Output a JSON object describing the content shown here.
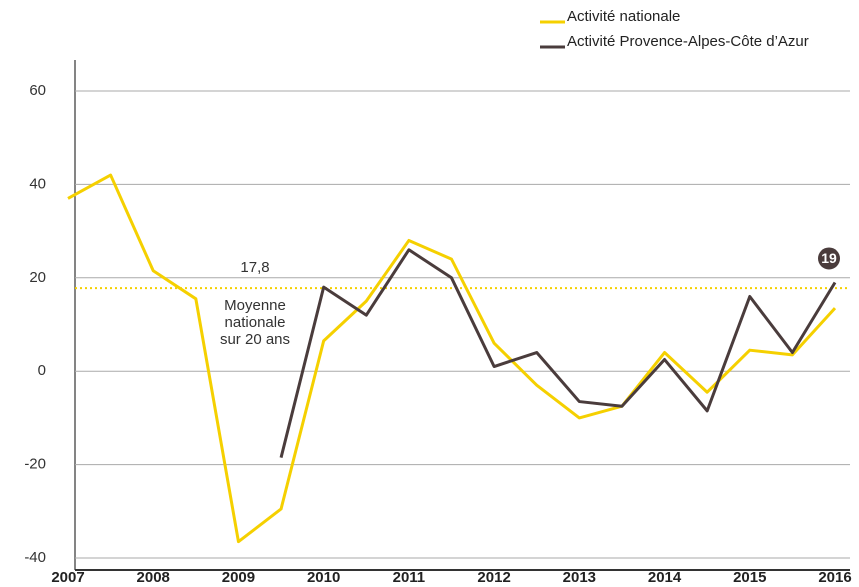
{
  "chart_data": {
    "type": "line",
    "x": [
      2007,
      2007.5,
      2008,
      2008.5,
      2009,
      2009.5,
      2010,
      2010.5,
      2011,
      2011.5,
      2012,
      2012.5,
      2013,
      2013.5,
      2014,
      2014.5,
      2015,
      2015.5,
      2016
    ],
    "series": [
      {
        "name": "Activité nationale",
        "color": "#f5d000",
        "values": [
          37,
          42,
          21.5,
          15.5,
          -36.5,
          -29.5,
          6.5,
          15,
          28,
          24,
          6,
          -3,
          -10,
          -7.5,
          4,
          -4.5,
          4.5,
          3.5,
          13.5
        ]
      },
      {
        "name": "Activité Provence-Alpes-Côte d’Azur",
        "color": "#4a3c3c",
        "values": [
          null,
          null,
          null,
          null,
          null,
          -18.5,
          18,
          12,
          26,
          20,
          1,
          4,
          -6.5,
          -7.5,
          2.5,
          -8.5,
          16,
          4,
          19
        ]
      }
    ],
    "xlim": [
      2007,
      2016
    ],
    "xticks": [
      2007,
      2008,
      2009,
      2010,
      2011,
      2012,
      2013,
      2014,
      2015,
      2016
    ],
    "ylim": [
      -40,
      60
    ],
    "yticks": [
      -40,
      -20,
      0,
      20,
      40,
      60
    ],
    "grid": true,
    "legend": "top-right",
    "reference_line": {
      "value": 17.8,
      "label": "17,8",
      "text": [
        "Moyenne",
        "nationale",
        "sur 20 ans"
      ]
    }
  }
}
